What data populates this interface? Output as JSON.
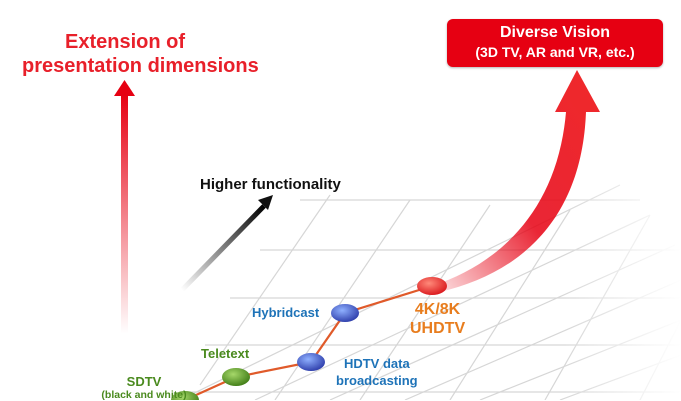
{
  "vertical_axis": {
    "line1": "Extension of",
    "line2": "presentation dimensions"
  },
  "diagonal_axis": {
    "label": "Higher functionality"
  },
  "goal": {
    "title": "Diverse Vision",
    "subtitle": "(3D TV, AR and VR, etc.)"
  },
  "milestones": {
    "sdtv": {
      "line1": "SDTV",
      "line2": "(black and white)"
    },
    "teletext": {
      "label": "Teletext"
    },
    "hdtv_data": {
      "line1": "HDTV data",
      "line2": "broadcasting"
    },
    "hybridcast": {
      "label": "Hybridcast"
    },
    "uhdtv": {
      "line1": "4K/8K",
      "line2": "UHDTV"
    }
  },
  "colors": {
    "red": "#e60012",
    "blue": "#1e73b8",
    "green": "#4a8a1e",
    "orange": "#e87d1e",
    "connector": "#e05a2a"
  }
}
